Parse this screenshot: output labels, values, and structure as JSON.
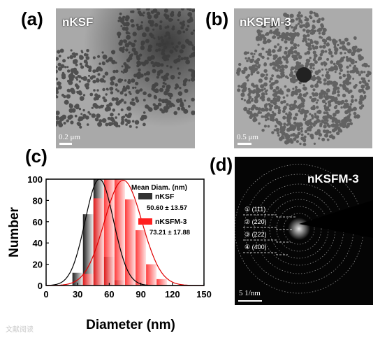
{
  "panels": {
    "a": {
      "label": "(a)",
      "sample": "nKSF",
      "scale": "0.2 μm"
    },
    "b": {
      "label": "(b)",
      "sample": "nKSFM-3",
      "scale": "0.5 μm"
    },
    "c": {
      "label": "(c)"
    },
    "d": {
      "label": "(d)",
      "sample": "nKSFM-3",
      "scale": "5 1/nm",
      "rings": [
        {
          "num": "①",
          "hkl": "(111)"
        },
        {
          "num": "②",
          "hkl": "(220)"
        },
        {
          "num": "③",
          "hkl": "(222)"
        },
        {
          "num": "④",
          "hkl": "(400)"
        }
      ]
    }
  },
  "chart_data": {
    "type": "bar",
    "xlabel": "Diameter (nm)",
    "ylabel": "Number",
    "xlim": [
      0,
      150
    ],
    "ylim": [
      0,
      100
    ],
    "xticks": [
      0,
      30,
      60,
      90,
      120,
      150
    ],
    "yticks": [
      0,
      20,
      40,
      60,
      80,
      100
    ],
    "legend_title": "Mean Diam. (nm)",
    "bin_width": 10,
    "series": [
      {
        "name": "nKSF",
        "stat": "50.60 ± 13.57",
        "color": "#333333",
        "x": [
          30,
          40,
          50,
          60,
          70
        ],
        "values": [
          12,
          67,
          100,
          27,
          5
        ],
        "fit": {
          "mean": 50.6,
          "sd": 13.57,
          "peak": 100
        }
      },
      {
        "name": "nKSFM-3",
        "stat": "73.21 ± 17.88",
        "color": "#ff1f1f",
        "x": [
          40,
          50,
          60,
          70,
          80,
          90,
          100,
          110
        ],
        "values": [
          11,
          82,
          100,
          100,
          81,
          52,
          20,
          6
        ],
        "fit": {
          "mean": 73.21,
          "sd": 17.88,
          "peak": 99
        }
      }
    ]
  },
  "watermark": "文献阅读"
}
